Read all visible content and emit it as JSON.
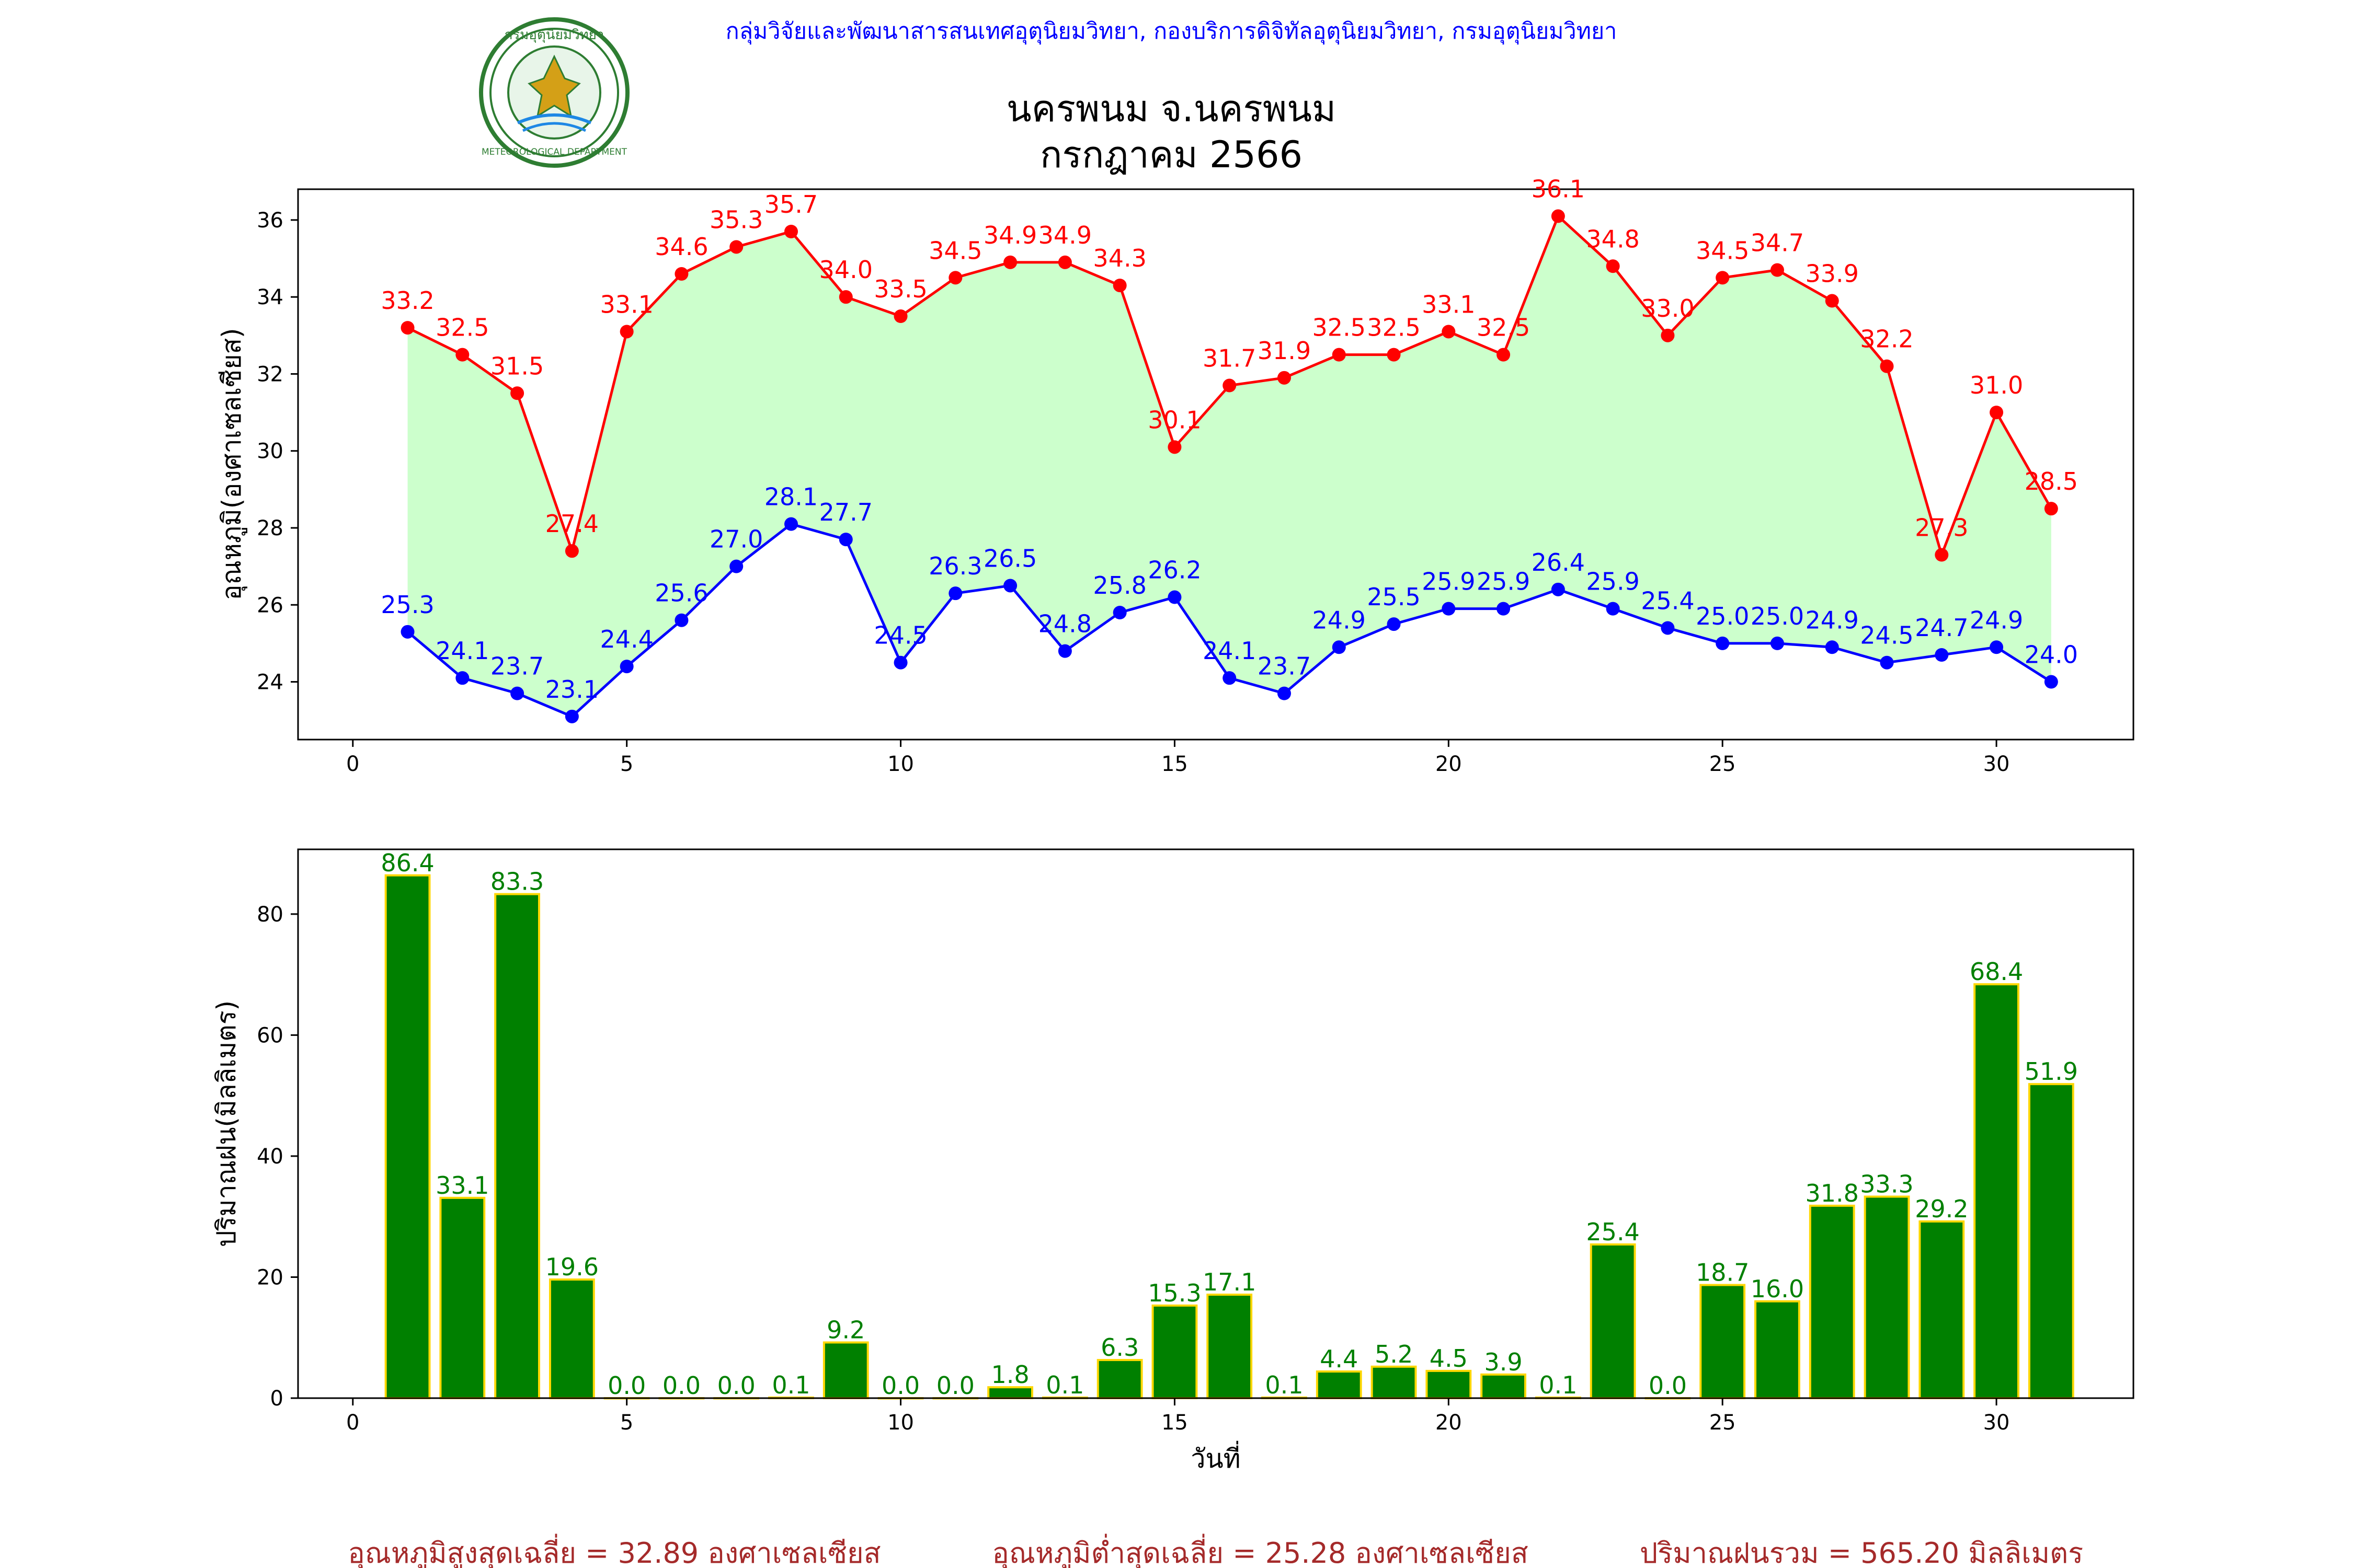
{
  "header": {
    "agency": "กลุ่มวิจัยและพัฒนาสารสนเทศอุตุนิยมวิทยา, กองบริการดิจิทัลอุตุนิยมวิทยา, กรมอุตุนิยมวิทยา",
    "logo_text_top": "กรมอุตุนิยมวิทยา",
    "logo_text_bottom": "METEOROLOGICAL DEPARTMENT"
  },
  "colors": {
    "max_line": "#ff0000",
    "min_line": "#0000ff",
    "range_fill": "#ccffcc",
    "rain_bar": "#008000",
    "rain_edge": "#ffd700",
    "rain_label": "#008000",
    "agency_text": "#0000ff",
    "summary_text": "#a52a2a"
  },
  "summary": {
    "avg_max": "อุณหภูมิสูงสุดเฉลี่ย = 32.89 องศาเซลเซียส",
    "avg_min": "อุณหภูมิต่ำสุดเฉลี่ย = 25.28 องศาเซลเซียส",
    "total_rain": "ปริมาณฝนรวม = 565.20 มิลลิเมตร"
  },
  "chart_data": [
    {
      "type": "line",
      "title": "นครพนม จ.นครพนม",
      "subtitle": "กรกฎาคม 2566",
      "xlabel": "",
      "ylabel": "อุณหภูมิ(องศาเซลเซียส)",
      "xlim": [
        -1,
        32.5
      ],
      "ylim": [
        22.5,
        36.8
      ],
      "xticks": [
        0,
        5,
        10,
        15,
        20,
        25,
        30
      ],
      "yticks": [
        24,
        26,
        28,
        30,
        32,
        34,
        36
      ],
      "grid": false,
      "fill_between": true,
      "x": [
        1,
        2,
        3,
        4,
        5,
        6,
        7,
        8,
        9,
        10,
        11,
        12,
        13,
        14,
        15,
        16,
        17,
        18,
        19,
        20,
        21,
        22,
        23,
        24,
        25,
        26,
        27,
        28,
        29,
        30,
        31
      ],
      "series": [
        {
          "key": "max",
          "values": [
            33.2,
            32.5,
            31.5,
            27.4,
            33.1,
            34.6,
            35.3,
            35.7,
            34.0,
            33.5,
            34.5,
            34.9,
            34.9,
            34.3,
            30.1,
            31.7,
            31.9,
            32.5,
            32.5,
            33.1,
            32.5,
            36.1,
            34.8,
            33.0,
            34.5,
            34.7,
            33.9,
            32.2,
            27.3,
            31.0,
            28.5
          ]
        },
        {
          "key": "min",
          "values": [
            25.3,
            24.1,
            23.7,
            23.1,
            24.4,
            25.6,
            27.0,
            28.1,
            27.7,
            24.5,
            26.3,
            26.5,
            24.8,
            25.8,
            26.2,
            24.1,
            23.7,
            24.9,
            25.5,
            25.9,
            25.9,
            26.4,
            25.9,
            25.4,
            25.0,
            25.0,
            24.9,
            24.5,
            24.7,
            24.9,
            24.0
          ]
        }
      ]
    },
    {
      "type": "bar",
      "xlabel": "วันที่",
      "ylabel": "ปริมาณฝน(มิลลิเมตร)",
      "xlim": [
        -1,
        32.5
      ],
      "ylim": [
        0,
        90.7
      ],
      "xticks": [
        0,
        5,
        10,
        15,
        20,
        25,
        30
      ],
      "yticks": [
        0,
        20,
        40,
        60,
        80
      ],
      "grid": false,
      "x": [
        1,
        2,
        3,
        4,
        5,
        6,
        7,
        8,
        9,
        10,
        11,
        12,
        13,
        14,
        15,
        16,
        17,
        18,
        19,
        20,
        21,
        22,
        23,
        24,
        25,
        26,
        27,
        28,
        29,
        30,
        31
      ],
      "values": [
        86.4,
        33.1,
        83.3,
        19.6,
        0.0,
        0.0,
        0.0,
        0.1,
        9.2,
        0.0,
        0.0,
        1.8,
        0.1,
        6.3,
        15.3,
        17.1,
        0.1,
        4.4,
        5.2,
        4.5,
        3.9,
        0.1,
        25.4,
        0.0,
        18.7,
        16.0,
        31.8,
        33.3,
        29.2,
        68.4,
        51.9
      ]
    }
  ]
}
